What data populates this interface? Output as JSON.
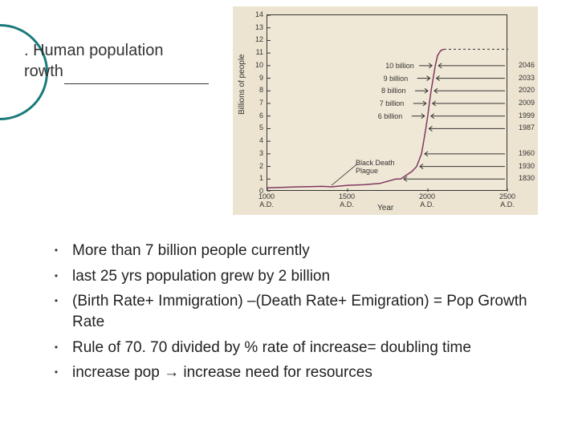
{
  "title": {
    "line1": ". Human population",
    "line2": "rowth"
  },
  "chart": {
    "type": "line",
    "background_color": "#ece4d0",
    "plot_background_color": "#f0e8d6",
    "border_color": "#333333",
    "ylabel": "Billions of people",
    "xlabel": "Year",
    "ylim": [
      0,
      14
    ],
    "ytick_step": 1,
    "xlim": [
      1000,
      2500
    ],
    "xticks": [
      1000,
      1500,
      2000,
      2500
    ],
    "xtick_labels": [
      "1000\nA.D.",
      "1500\nA.D.",
      "2000\nA.D.",
      "2500\nA.D."
    ],
    "series_solid": {
      "color": "#803860",
      "points_year_pop": [
        [
          1000,
          0.3
        ],
        [
          1200,
          0.38
        ],
        [
          1340,
          0.42
        ],
        [
          1400,
          0.38
        ],
        [
          1500,
          0.5
        ],
        [
          1600,
          0.55
        ],
        [
          1700,
          0.65
        ],
        [
          1800,
          1.0
        ],
        [
          1830,
          1.0
        ],
        [
          1900,
          1.6
        ],
        [
          1930,
          2.0
        ],
        [
          1960,
          3.0
        ],
        [
          1970,
          3.7
        ],
        [
          1987,
          5.0
        ],
        [
          1999,
          6.0
        ],
        [
          2009,
          7.0
        ],
        [
          2020,
          8.0
        ],
        [
          2033,
          9.0
        ],
        [
          2046,
          10.0
        ],
        [
          2060,
          10.8
        ],
        [
          2080,
          11.2
        ],
        [
          2100,
          11.3
        ]
      ]
    },
    "series_dashed": {
      "color": "#333333",
      "dash": "3,3",
      "points_year_pop": [
        [
          2100,
          11.3
        ],
        [
          2500,
          11.3
        ]
      ]
    },
    "black_death_label": "Black Death\nPlague",
    "black_death_x": 1400,
    "annotations_left": [
      {
        "label": "10 billion",
        "pop": 10,
        "year": 2046
      },
      {
        "label": "9 billion",
        "pop": 9,
        "year": 2033
      },
      {
        "label": "8 billion",
        "pop": 8,
        "year": 2020
      },
      {
        "label": "7 billion",
        "pop": 7,
        "year": 2009
      },
      {
        "label": "6 billion",
        "pop": 6,
        "year": 1999
      }
    ],
    "year_labels_right": [
      {
        "year": 2046,
        "pop": 10
      },
      {
        "year": 2033,
        "pop": 9
      },
      {
        "year": 2020,
        "pop": 8
      },
      {
        "year": 2009,
        "pop": 7
      },
      {
        "year": 1999,
        "pop": 6
      },
      {
        "year": 1987,
        "pop": 5
      },
      {
        "year": 1960,
        "pop": 3
      },
      {
        "year": 1930,
        "pop": 2
      },
      {
        "year": 1830,
        "pop": 1
      }
    ],
    "label_fontsize": 9,
    "axis_fontsize": 10
  },
  "bullets": [
    "More than 7 billion people currently",
    "last 25 yrs population grew by 2 billion",
    "(Birth Rate+ Immigration) –(Death Rate+ Emigration) = Pop Growth Rate",
    "Rule of 70.  70 divided by % rate of increase= doubling time",
    "increase pop → increase need for resources"
  ],
  "colors": {
    "circle_stroke": "#1a7a7a",
    "text": "#333333",
    "page_bg": "#ffffff"
  }
}
